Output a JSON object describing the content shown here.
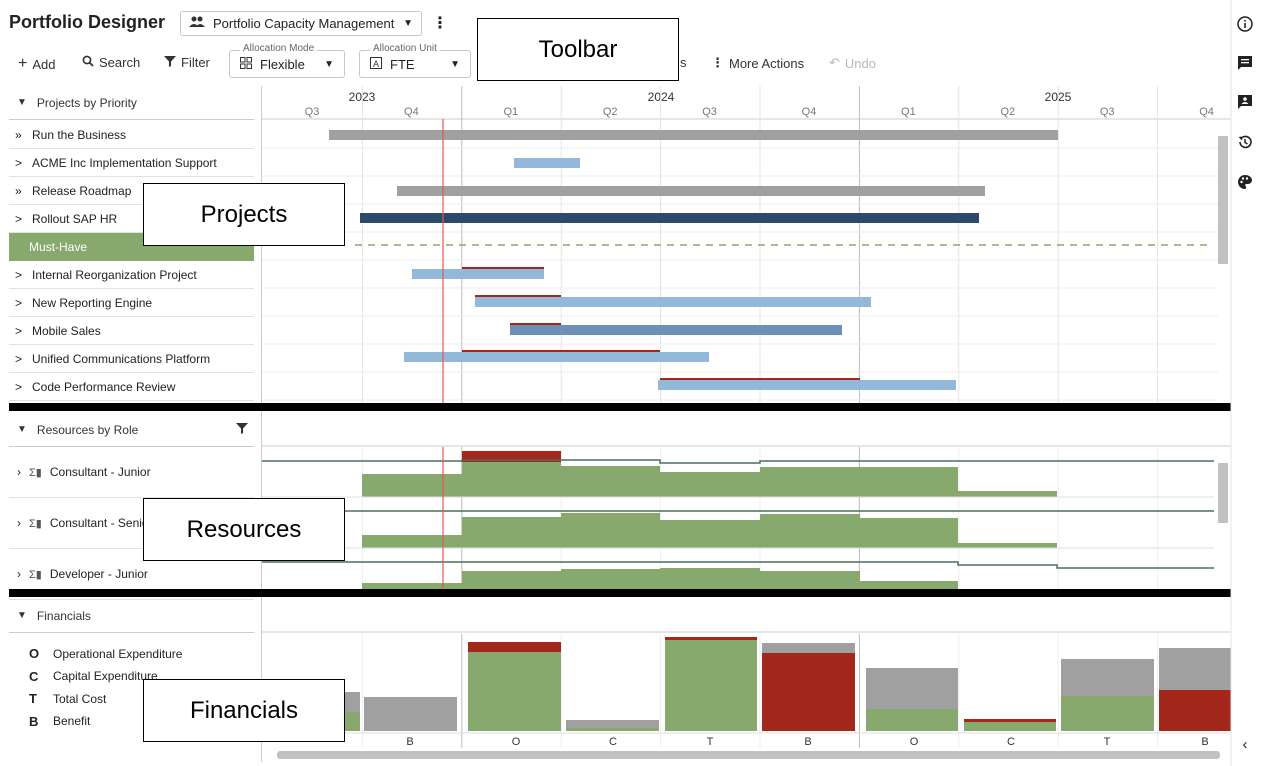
{
  "header": {
    "title": "Portfolio Designer",
    "portfolio_select": {
      "icon": "people-icon",
      "value": "Portfolio Capacity Management"
    }
  },
  "toolbar": {
    "add_label": "Add",
    "search_label": "Search",
    "filter_label": "Filter",
    "allocation_mode": {
      "legend": "Allocation Mode",
      "value": "Flexible"
    },
    "allocation_unit": {
      "legend": "Allocation Unit",
      "value": "FTE"
    },
    "partial_label": "s",
    "more_actions_label": "More Actions",
    "undo_label": "Undo"
  },
  "callouts": {
    "toolbar": "Toolbar",
    "projects": "Projects",
    "resources": "Resources",
    "financials": "Financials"
  },
  "timeline": {
    "years": [
      "2023",
      "2024",
      "2025"
    ],
    "quarters": [
      "Q3",
      "Q4",
      "Q1",
      "Q2",
      "Q3",
      "Q4",
      "Q1",
      "Q2",
      "Q3",
      "Q4"
    ]
  },
  "projects": {
    "header": "Projects by Priority",
    "rows": [
      {
        "label": "Run the Business",
        "expander": "»"
      },
      {
        "label": "ACME Inc Implementation Support",
        "expander": ">"
      },
      {
        "label": "Release Roadmap",
        "expander": "»"
      },
      {
        "label": "Rollout SAP HR",
        "expander": ">"
      },
      {
        "label": "Must-Have",
        "expander": ""
      },
      {
        "label": "Internal Reorganization Project",
        "expander": ">"
      },
      {
        "label": "New Reporting Engine",
        "expander": ">"
      },
      {
        "label": "Mobile Sales",
        "expander": ">"
      },
      {
        "label": "Unified Communications Platform",
        "expander": ">"
      },
      {
        "label": "Code Performance Review",
        "expander": ">"
      }
    ]
  },
  "resources": {
    "header": "Resources by Role",
    "rows": [
      {
        "label": "Consultant - Junior"
      },
      {
        "label": "Consultant - Senior"
      },
      {
        "label": "Developer - Junior"
      }
    ]
  },
  "financials": {
    "header": "Financials",
    "legend": [
      {
        "key": "O",
        "label": "Operational Expenditure"
      },
      {
        "key": "C",
        "label": "Capital Expenditure"
      },
      {
        "key": "T",
        "label": "Total Cost"
      },
      {
        "key": "B",
        "label": "Benefit"
      }
    ],
    "column_labels": [
      "B",
      "O",
      "C",
      "T",
      "B",
      "O",
      "C",
      "T",
      "B"
    ]
  },
  "colors": {
    "bar_gray": "#a0a0a0",
    "bar_light_blue": "#94b8da",
    "bar_mid_blue": "#6d90b8",
    "bar_dark_blue": "#2c4a6e",
    "green": "#87a96d",
    "red": "#a3271b",
    "today_line": "#e05a4f"
  },
  "rail": [
    "info-icon",
    "comments-icon",
    "contact-card-icon",
    "history-icon",
    "palette-icon",
    "collapse-chevron-icon"
  ]
}
